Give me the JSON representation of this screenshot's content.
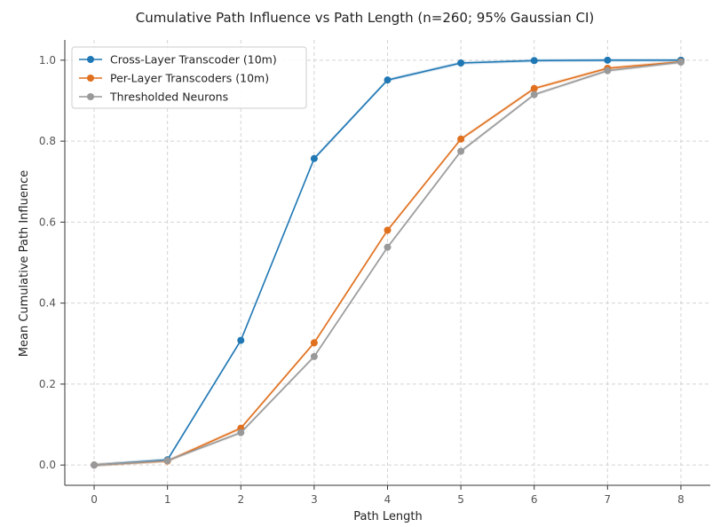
{
  "chart_data": {
    "type": "line",
    "title": "Cumulative Path Influence vs Path Length (n=260; 95% Gaussian CI)",
    "xlabel": "Path Length",
    "ylabel": "Mean Cumulative Path Influence",
    "x": [
      0,
      1,
      2,
      3,
      4,
      5,
      6,
      7,
      8
    ],
    "xticks": [
      "0",
      "1",
      "2",
      "3",
      "4",
      "5",
      "6",
      "7",
      "8"
    ],
    "yticks": [
      "0.0",
      "0.2",
      "0.4",
      "0.6",
      "0.8",
      "1.0"
    ],
    "xlim": [
      -0.4,
      8.4
    ],
    "ylim": [
      -0.05,
      1.05
    ],
    "grid": true,
    "legend_position": "top-left",
    "series": [
      {
        "name": "Cross-Layer Transcoder (10m)",
        "color": "#1f77b4",
        "values": [
          0.0,
          0.013,
          0.308,
          0.757,
          0.951,
          0.993,
          0.999,
          1.0,
          1.0
        ]
      },
      {
        "name": "Per-Layer Transcoders (10m)",
        "color": "#e0701e",
        "values": [
          0.0,
          0.01,
          0.091,
          0.302,
          0.58,
          0.805,
          0.93,
          0.98,
          0.996
        ]
      },
      {
        "name": "Thresholded Neurons",
        "color": "#999999",
        "values": [
          0.0,
          0.011,
          0.08,
          0.268,
          0.538,
          0.775,
          0.915,
          0.974,
          0.995
        ]
      }
    ]
  }
}
